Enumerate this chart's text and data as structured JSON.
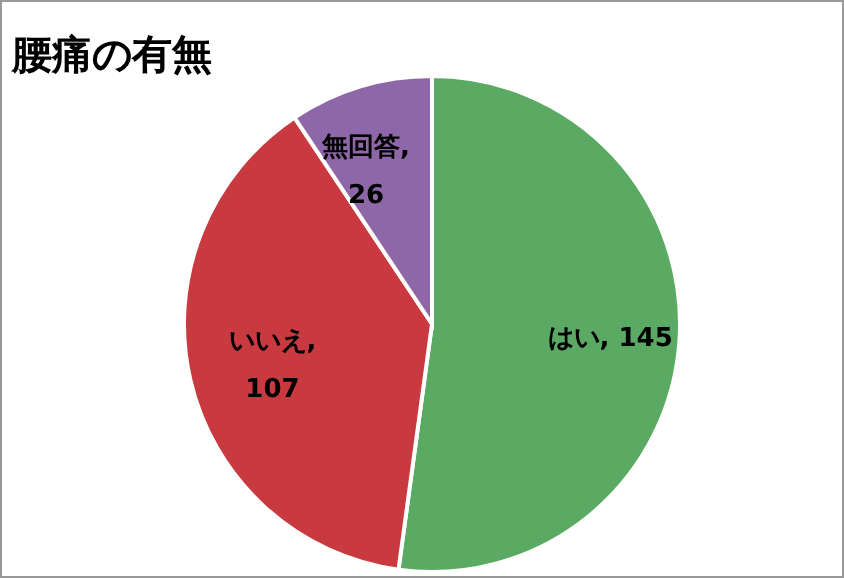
{
  "chart_data": {
    "type": "pie",
    "title": "腰痛の有無",
    "categories": [
      null,
      null,
      null
    ],
    "values": [
      145,
      107,
      26
    ],
    "colors": [
      "#5aaa64",
      "#c83a40",
      "#8e67a8"
    ],
    "value_labels": [
      "はい, 145",
      "いいえ, 107",
      "無回答, 26"
    ]
  }
}
